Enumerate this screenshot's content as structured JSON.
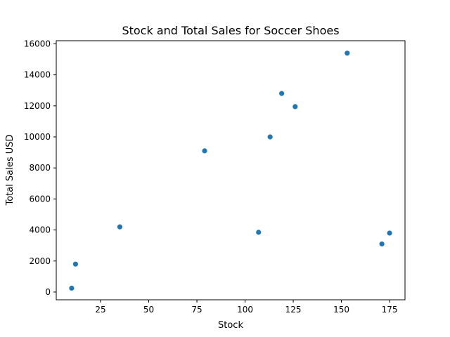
{
  "chart_data": {
    "type": "scatter",
    "title": "Stock and Total Sales for Soccer Shoes",
    "xlabel": "Stock",
    "ylabel": "Total Sales USD",
    "xlim": [
      2,
      183
    ],
    "ylim": [
      -500,
      16200
    ],
    "xticks": [
      25,
      50,
      75,
      100,
      125,
      150,
      175
    ],
    "yticks": [
      0,
      2000,
      4000,
      6000,
      8000,
      10000,
      12000,
      14000,
      16000
    ],
    "grid": false,
    "legend": "none",
    "marker_color": "#1f77b4",
    "points": [
      {
        "x": 10,
        "y": 250
      },
      {
        "x": 12,
        "y": 1800
      },
      {
        "x": 35,
        "y": 4200
      },
      {
        "x": 79,
        "y": 9100
      },
      {
        "x": 107,
        "y": 3850
      },
      {
        "x": 113,
        "y": 10000
      },
      {
        "x": 119,
        "y": 12800
      },
      {
        "x": 126,
        "y": 11950
      },
      {
        "x": 153,
        "y": 15400
      },
      {
        "x": 171,
        "y": 3100
      },
      {
        "x": 175,
        "y": 3800
      }
    ]
  }
}
